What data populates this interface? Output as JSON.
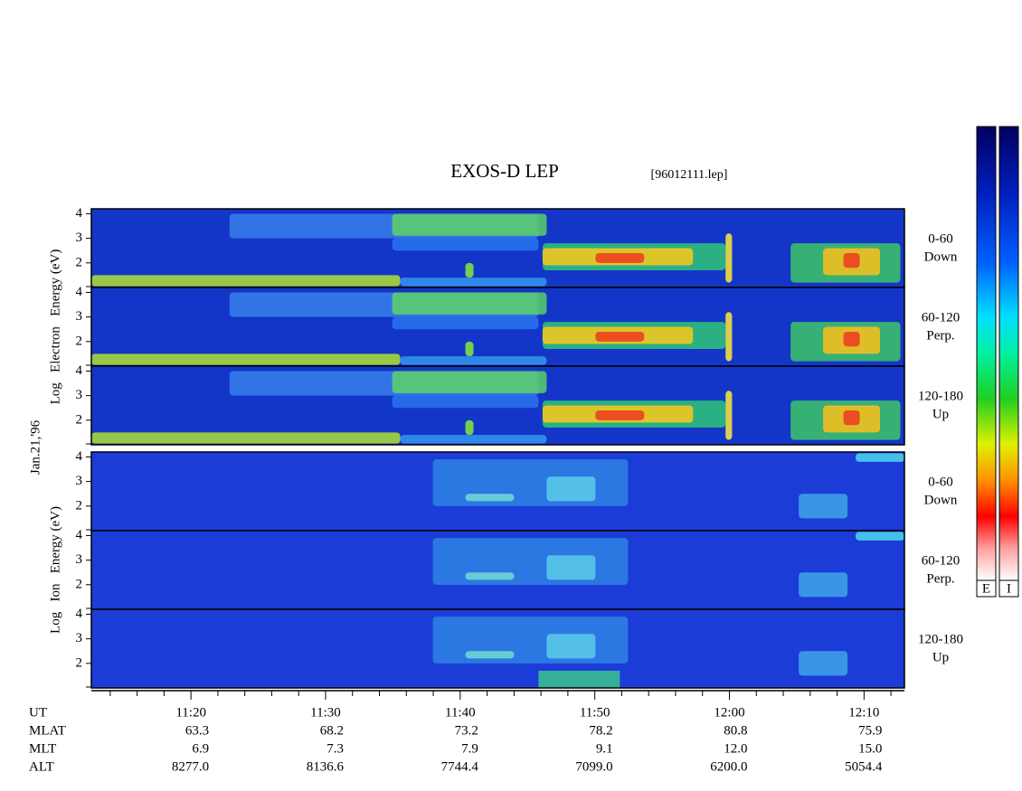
{
  "chart_data": {
    "type": "spectrogram",
    "title": "EXOS-D LEP",
    "subtitle": "[96012111.lep]",
    "date_label": "Jan.21,'96",
    "groups": [
      {
        "species": "electron",
        "ylabel": "Log   Electron   Energy (eV)",
        "panels": [
          {
            "label": [
              "0-60",
              "Down"
            ]
          },
          {
            "label": [
              "60-120",
              "Perp."
            ]
          },
          {
            "label": [
              "120-180",
              "Up"
            ]
          }
        ]
      },
      {
        "species": "ion",
        "ylabel": "Log   Ion   Energy (eV)",
        "panels": [
          {
            "label": [
              "0-60",
              "Down"
            ]
          },
          {
            "label": [
              "60-120",
              "Perp."
            ]
          },
          {
            "label": [
              "120-180",
              "Up"
            ]
          }
        ]
      }
    ],
    "ylim": [
      1,
      4.2
    ],
    "yticks": [
      2,
      3,
      4
    ],
    "xlim": [
      672.6,
      733
    ],
    "xticks": [
      {
        "value": 680,
        "label": "11:20"
      },
      {
        "value": 690,
        "label": "11:30"
      },
      {
        "value": 700,
        "label": "11:40"
      },
      {
        "value": 710,
        "label": "11:50"
      },
      {
        "value": 720,
        "label": "12:00"
      },
      {
        "value": 730,
        "label": "12:10"
      }
    ],
    "xminorticks": [
      674,
      676,
      678,
      682,
      684,
      686,
      688,
      692,
      694,
      696,
      698,
      702,
      704,
      706,
      708,
      712,
      714,
      716,
      718,
      722,
      724,
      726,
      728,
      732
    ],
    "x_label": "UT",
    "ephemeris": [
      {
        "name": "MLAT",
        "values": [
          "63.3",
          "68.2",
          "73.2",
          "78.2",
          "80.8",
          "75.9"
        ]
      },
      {
        "name": "MLT",
        "values": [
          "6.9",
          "7.3",
          "7.9",
          "9.1",
          "12.0",
          "15.0"
        ]
      },
      {
        "name": "ALT",
        "values": [
          "8277.0",
          "8136.6",
          "7744.4",
          "7099.0",
          "6200.0",
          "5054.4"
        ]
      }
    ],
    "colorbar_labels": [
      "E",
      "I"
    ]
  }
}
